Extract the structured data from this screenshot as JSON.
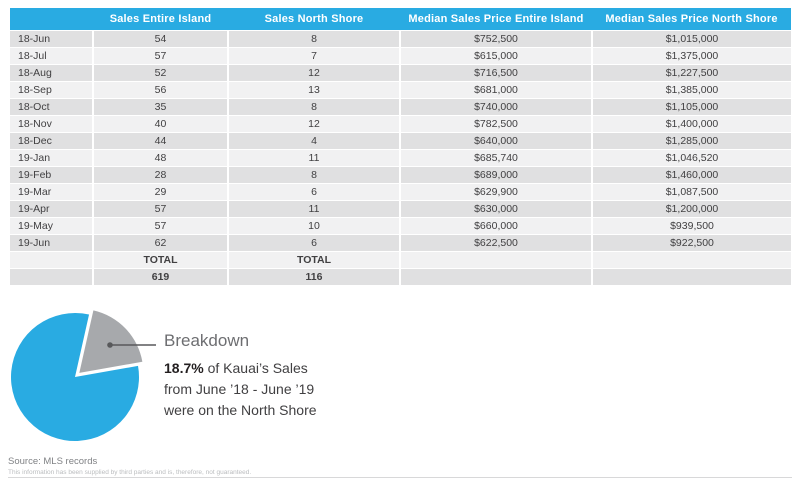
{
  "chart_data": [
    {
      "type": "table",
      "columns": [
        "",
        "Sales Entire Island",
        "Sales North Shore",
        "Median Sales Price Entire Island",
        "Median Sales Price North Shore"
      ],
      "rows": [
        [
          "18-Jun",
          54,
          8,
          "$752,500",
          "$1,015,000"
        ],
        [
          "18-Jul",
          57,
          7,
          "$615,000",
          "$1,375,000"
        ],
        [
          "18-Aug",
          52,
          12,
          "$716,500",
          "$1,227,500"
        ],
        [
          "18-Sep",
          56,
          13,
          "$681,000",
          "$1,385,000"
        ],
        [
          "18-Oct",
          35,
          8,
          "$740,000",
          "$1,105,000"
        ],
        [
          "18-Nov",
          40,
          12,
          "$782,500",
          "$1,400,000"
        ],
        [
          "18-Dec",
          44,
          4,
          "$640,000",
          "$1,285,000"
        ],
        [
          "19-Jan",
          48,
          11,
          "$685,740",
          "$1,046,520"
        ],
        [
          "19-Feb",
          28,
          8,
          "$689,000",
          "$1,460,000"
        ],
        [
          "19-Mar",
          29,
          6,
          "$629,900",
          "$1,087,500"
        ],
        [
          "19-Apr",
          57,
          11,
          "$630,000",
          "$1,200,000"
        ],
        [
          "19-May",
          57,
          10,
          "$660,000",
          "$939,500"
        ],
        [
          "19-Jun",
          62,
          6,
          "$622,500",
          "$922,500"
        ]
      ],
      "totals": {
        "label": "TOTAL",
        "sales_entire_island": 619,
        "sales_north_shore": 116
      }
    },
    {
      "type": "pie",
      "title": "Breakdown",
      "slices": [
        {
          "label": "North Shore sales",
          "value": 18.7,
          "color": "#A7A9AC",
          "exploded": true
        },
        {
          "label": "Rest of Kauai sales",
          "value": 81.3,
          "color": "#29ABE2",
          "exploded": false
        }
      ],
      "start_angle_deg": 10,
      "legend": "none",
      "annotation": "18.7% of Kauai’s Sales from June ’18 - June ’19 were on the North Shore"
    }
  ],
  "annotation": {
    "title": "Breakdown",
    "stat": "18.7%",
    "line1_rest": " of Kauai’s Sales",
    "line2": "from June ’18 - June ’19",
    "line3": "were on the North Shore"
  },
  "footer": {
    "source": "Source: MLS records",
    "disclaimer": "This information has been supplied by third parties and is, therefore, not guaranteed."
  },
  "colors": {
    "accent_blue": "#29ABE2",
    "slice_gray": "#A7A9AC",
    "row_dark": "#E0E0E1",
    "row_light": "#F1F1F2",
    "text_dark": "#414042",
    "leader_line": "#58595B"
  }
}
